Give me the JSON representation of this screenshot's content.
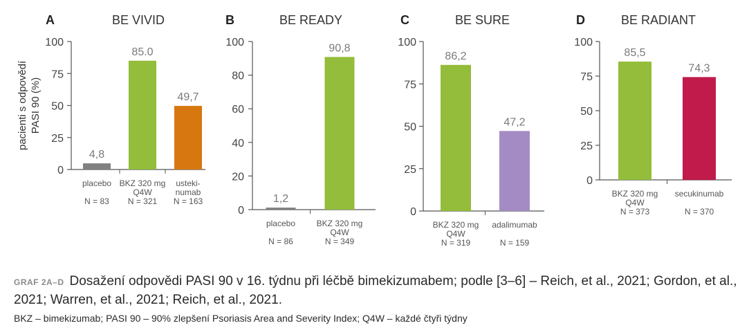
{
  "chart_data": [
    {
      "type": "bar",
      "panel": "A",
      "title": "BE VIVID",
      "ylabel": "pacienti s odpovědí PASI 90 (%)",
      "ylim": [
        0,
        100
      ],
      "yticks": [
        "0",
        "25",
        "50",
        "75",
        "100"
      ],
      "categories": [
        {
          "label": [
            "placebo"
          ],
          "n": "N = 83",
          "value": 4.8,
          "value_label": "4,8",
          "color": "#808080"
        },
        {
          "label": [
            "BKZ 320 mg",
            "Q4W"
          ],
          "n": "N = 321",
          "value": 85.0,
          "value_label": "85.0",
          "color": "#93bd3a"
        },
        {
          "label": [
            "usteki-",
            "numab"
          ],
          "n": "N = 163",
          "value": 49.7,
          "value_label": "49,7",
          "color": "#d6780f"
        }
      ]
    },
    {
      "type": "bar",
      "panel": "B",
      "title": "BE READY",
      "ylim": [
        0,
        100
      ],
      "yticks": [
        "0",
        "20",
        "40",
        "60",
        "80",
        "100"
      ],
      "categories": [
        {
          "label": [
            "placebo"
          ],
          "n": "N = 86",
          "value": 1.2,
          "value_label": "1,2",
          "color": "#808080"
        },
        {
          "label": [
            "BKZ 320 mg",
            "Q4W"
          ],
          "n": "N = 349",
          "value": 90.8,
          "value_label": "90,8",
          "color": "#93bd3a"
        }
      ]
    },
    {
      "type": "bar",
      "panel": "C",
      "title": "BE SURE",
      "ylim": [
        0,
        100
      ],
      "yticks": [
        "0",
        "25",
        "50",
        "75",
        "100"
      ],
      "categories": [
        {
          "label": [
            "BKZ 320 mg",
            "Q4W"
          ],
          "n": "N = 319",
          "value": 86.2,
          "value_label": "86,2",
          "color": "#93bd3a"
        },
        {
          "label": [
            "adalimumab"
          ],
          "n": "N = 159",
          "value": 47.2,
          "value_label": "47,2",
          "color": "#a58bc3"
        }
      ]
    },
    {
      "type": "bar",
      "panel": "D",
      "title": "BE RADIANT",
      "ylim": [
        0,
        100
      ],
      "yticks": [
        "0",
        "25",
        "50",
        "75",
        "100"
      ],
      "categories": [
        {
          "label": [
            "BKZ 320 mg",
            "Q4W"
          ],
          "n": "N = 373",
          "value": 85.5,
          "value_label": "85,5",
          "color": "#93bd3a"
        },
        {
          "label": [
            "secukinumab"
          ],
          "n": "N = 370",
          "value": 74.3,
          "value_label": "74,3",
          "color": "#c01b4b"
        }
      ]
    }
  ],
  "caption": {
    "label": "GRAF 2A–D",
    "text": "Dosažení odpovědi PASI 90 v 16. týdnu při léčbě bimekizumabem; podle [3–6] – Reich, et al., 2021; Gordon, et al., 2021; Warren, et al., 2021; Reich, et al., 2021."
  },
  "abbreviations": {
    "bkz_term": "BKZ",
    "bkz_def": " – bimekizumab; ",
    "pasi_term": "PASI 90",
    "pasi_def": " – 90% zlepšení Psoriasis Area and Severity Index; ",
    "q4w_term": "Q4W",
    "q4w_def": " – každé čtyři týdny"
  }
}
